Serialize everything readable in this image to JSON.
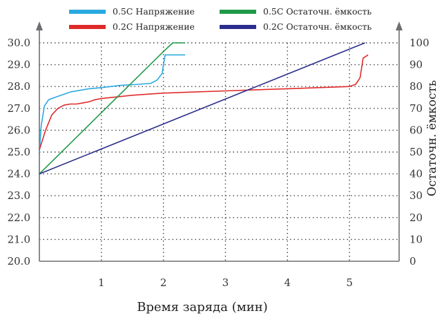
{
  "chart_data": {
    "type": "line",
    "xlabel": "Время заряда (мин)",
    "ylabel_right": "Остаточн. ёмкость",
    "xlim": [
      0,
      5.8
    ],
    "ylim_left": [
      20.0,
      30.0
    ],
    "ylim_right": [
      0,
      100
    ],
    "x_ticks": [
      "1",
      "2",
      "3",
      "4",
      "5"
    ],
    "y_left_ticks": [
      "20.0",
      "21.0",
      "22.0",
      "23.0",
      "24.0",
      "25.0",
      "26.0",
      "27.0",
      "28.0",
      "29.0",
      "30.0"
    ],
    "y_right_ticks": [
      "0",
      "10",
      "20",
      "30",
      "40",
      "50",
      "60",
      "70",
      "80",
      "90",
      "100"
    ],
    "grid": true,
    "legend_position": "top",
    "series": [
      {
        "name": "0.5C Напряжение",
        "color": "#29a9e0",
        "axis": "left",
        "points": [
          [
            0,
            25.0
          ],
          [
            0.03,
            26.2
          ],
          [
            0.08,
            27.1
          ],
          [
            0.15,
            27.4
          ],
          [
            0.3,
            27.55
          ],
          [
            0.5,
            27.75
          ],
          [
            0.8,
            27.9
          ],
          [
            1.0,
            27.95
          ],
          [
            1.3,
            28.05
          ],
          [
            1.6,
            28.1
          ],
          [
            1.8,
            28.15
          ],
          [
            1.9,
            28.3
          ],
          [
            1.98,
            28.6
          ],
          [
            2.0,
            29.0
          ],
          [
            2.03,
            29.45
          ],
          [
            2.1,
            29.45
          ],
          [
            2.35,
            29.45
          ]
        ]
      },
      {
        "name": "0.2C Напряжение",
        "color": "#e02a2a",
        "axis": "left",
        "points": [
          [
            0,
            25.1
          ],
          [
            0.1,
            26.0
          ],
          [
            0.2,
            26.7
          ],
          [
            0.3,
            27.0
          ],
          [
            0.4,
            27.15
          ],
          [
            0.5,
            27.2
          ],
          [
            0.6,
            27.2
          ],
          [
            0.7,
            27.25
          ],
          [
            0.8,
            27.3
          ],
          [
            0.9,
            27.4
          ],
          [
            1.0,
            27.45
          ],
          [
            1.5,
            27.6
          ],
          [
            2.0,
            27.7
          ],
          [
            2.5,
            27.75
          ],
          [
            3.0,
            27.8
          ],
          [
            3.5,
            27.85
          ],
          [
            4.0,
            27.9
          ],
          [
            4.5,
            27.95
          ],
          [
            5.0,
            28.0
          ],
          [
            5.1,
            28.1
          ],
          [
            5.17,
            28.4
          ],
          [
            5.22,
            29.3
          ],
          [
            5.3,
            29.45
          ]
        ]
      },
      {
        "name": "0.5C Остаточн. ёмкость",
        "color": "#1f9a48",
        "axis": "right",
        "points": [
          [
            0,
            40
          ],
          [
            1.0,
            68
          ],
          [
            2.0,
            96
          ],
          [
            2.15,
            100
          ],
          [
            2.35,
            100
          ]
        ]
      },
      {
        "name": "0.2C Остаточн. ёмкость",
        "color": "#2b2d8c",
        "axis": "right",
        "points": [
          [
            0,
            40
          ],
          [
            5.25,
            100
          ]
        ]
      }
    ]
  }
}
